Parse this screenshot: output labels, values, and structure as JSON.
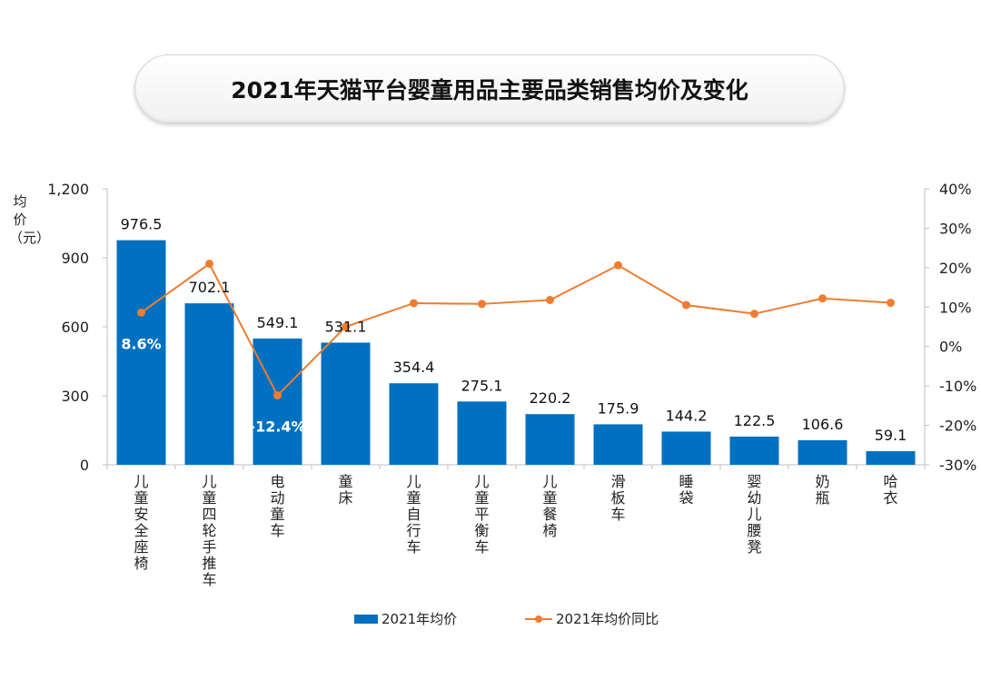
{
  "title": "2021年天猫平台婴童用品主要品类销售均价及变化",
  "chart_data": {
    "type": "bar",
    "title": "2021年天猫平台婴童用品主要品类销售均价及变化",
    "ylabel": "均价（元）",
    "ylim": [
      0,
      1200
    ],
    "yticks": [
      "0",
      "300",
      "600",
      "900",
      "1,200"
    ],
    "y2lim": [
      -30,
      40
    ],
    "y2ticks": [
      "-30%",
      "-20%",
      "-10%",
      "0%",
      "10%",
      "20%",
      "30%",
      "40%"
    ],
    "categories": [
      "儿童安全座椅",
      "儿童四轮手推车",
      "电动童车",
      "童床",
      "儿童自行车",
      "儿童平衡车",
      "儿童餐椅",
      "滑板车",
      "睡袋",
      "婴幼儿腰凳",
      "奶瓶",
      "哈衣"
    ],
    "series": [
      {
        "name": "2021年均价",
        "type": "bar",
        "axis": "left",
        "color": "#0070C0",
        "values": [
          976.5,
          702.1,
          549.1,
          531.1,
          354.4,
          275.1,
          220.2,
          175.9,
          144.2,
          122.5,
          106.6,
          59.1
        ],
        "labels": [
          "976.5",
          "702.1",
          "549.1",
          "531.1",
          "354.4",
          "275.1",
          "220.2",
          "175.9",
          "144.2",
          "122.5",
          "106.6",
          "59.1"
        ]
      },
      {
        "name": "2021年均价同比",
        "type": "line",
        "axis": "right",
        "color": "#ED7D31",
        "values": [
          8.6,
          21.0,
          -12.4,
          5.0,
          11.0,
          10.8,
          11.8,
          20.6,
          10.5,
          8.3,
          12.2,
          11.1
        ],
        "labels": [
          "8.6%",
          "",
          "-12.4%",
          "",
          "",
          "",
          "",
          "",
          "",
          "",
          "",
          ""
        ]
      }
    ],
    "legend": "bottom",
    "grid": false
  }
}
